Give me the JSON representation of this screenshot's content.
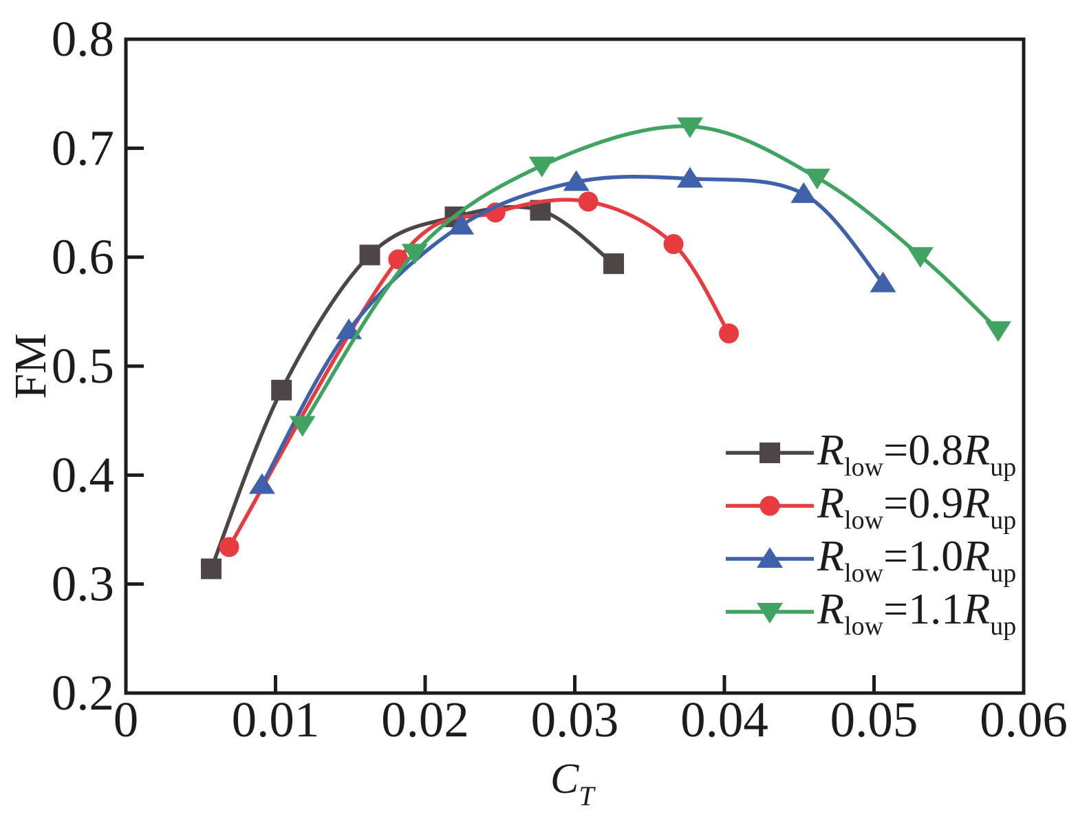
{
  "chart_data": {
    "type": "line",
    "title": "",
    "xlabel": "C",
    "xlabel_sub": "T",
    "ylabel": "FM",
    "xlim": [
      0,
      0.06
    ],
    "ylim": [
      0.2,
      0.8
    ],
    "x_ticks": [
      0,
      0.01,
      0.02,
      0.03,
      0.04,
      0.05,
      0.06
    ],
    "x_tick_labels": [
      "0",
      "0.01",
      "0.02",
      "0.03",
      "0.04",
      "0.05",
      "0.06"
    ],
    "y_ticks": [
      0.2,
      0.3,
      0.4,
      0.5,
      0.6,
      0.7,
      0.8
    ],
    "y_tick_labels": [
      "0.2",
      "0.3",
      "0.4",
      "0.5",
      "0.6",
      "0.7",
      "0.8"
    ],
    "grid": false,
    "legend_position": "lower-right",
    "axis_color": "#1c1c1c",
    "series": [
      {
        "label": "Rlow=0.8Rup",
        "legend_parts": {
          "r1": "R",
          "sub1": "low",
          "eq": "=0.8",
          "r2": "R",
          "sub2": "up"
        },
        "color": "#4d4546",
        "marker": "square",
        "points": [
          [
            0.0057,
            0.314
          ],
          [
            0.0104,
            0.478
          ],
          [
            0.0163,
            0.602
          ],
          [
            0.022,
            0.637
          ],
          [
            0.0277,
            0.643
          ],
          [
            0.0326,
            0.594
          ]
        ]
      },
      {
        "label": "Rlow=0.9Rup",
        "legend_parts": {
          "r1": "R",
          "sub1": "low",
          "eq": "=0.9",
          "r2": "R",
          "sub2": "up"
        },
        "color": "#e83b40",
        "marker": "circle",
        "points": [
          [
            0.0069,
            0.334
          ],
          [
            0.0182,
            0.598
          ],
          [
            0.0247,
            0.641
          ],
          [
            0.0309,
            0.651
          ],
          [
            0.0366,
            0.612
          ],
          [
            0.0403,
            0.53
          ]
        ]
      },
      {
        "label": "Rlow=1.0Rup",
        "legend_parts": {
          "r1": "R",
          "sub1": "low",
          "eq": "=1.0",
          "r2": "R",
          "sub2": "up"
        },
        "color": "#3e61aa",
        "marker": "triangle-up",
        "points": [
          [
            0.0091,
            0.391
          ],
          [
            0.0149,
            0.533
          ],
          [
            0.0224,
            0.629
          ],
          [
            0.0301,
            0.669
          ],
          [
            0.0377,
            0.672
          ],
          [
            0.0453,
            0.658
          ],
          [
            0.0506,
            0.576
          ]
        ]
      },
      {
        "label": "Rlow=1.1Rup",
        "legend_parts": {
          "r1": "R",
          "sub1": "low",
          "eq": "=1.1",
          "r2": "R",
          "sub2": "up"
        },
        "color": "#40a362",
        "marker": "triangle-down",
        "points": [
          [
            0.0118,
            0.446
          ],
          [
            0.0193,
            0.604
          ],
          [
            0.0278,
            0.684
          ],
          [
            0.0377,
            0.72
          ],
          [
            0.0462,
            0.673
          ],
          [
            0.0531,
            0.601
          ],
          [
            0.0583,
            0.533
          ]
        ]
      }
    ]
  }
}
